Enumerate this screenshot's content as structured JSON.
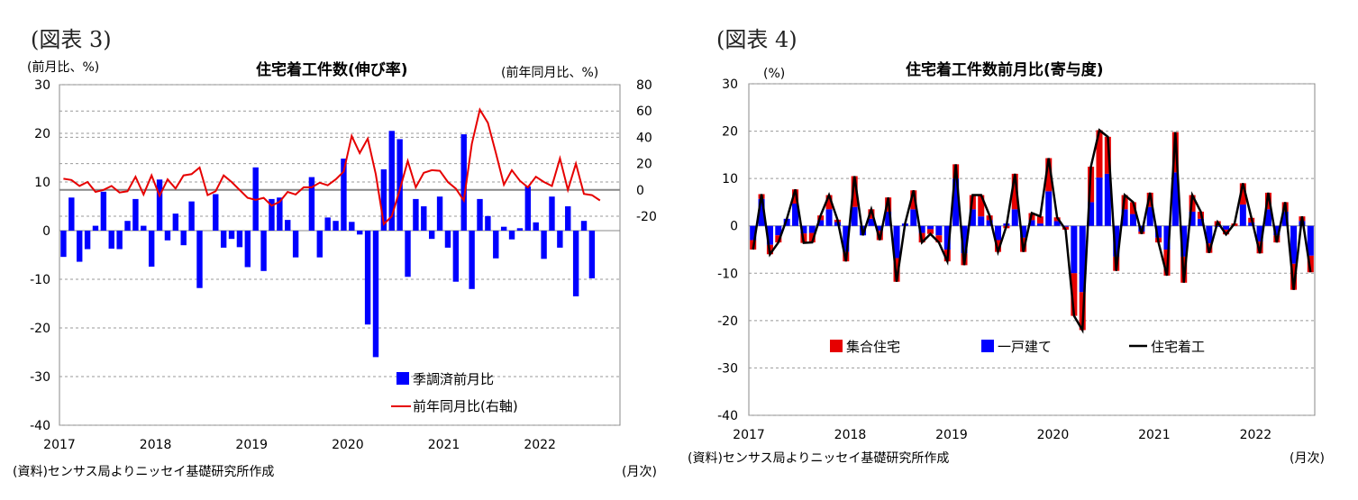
{
  "chart_data": [
    {
      "figure_label": "(図表 3)",
      "type": "bar",
      "title": "住宅着工件数(伸び率)",
      "ylabel_left": "(前月比、%)",
      "ylabel_right": "(前年同月比、%)",
      "xlabel": "(月次)",
      "source": "(資料)センサス局よりニッセイ基礎研究所作成",
      "x_ticks": [
        "2017",
        "2018",
        "2019",
        "2020",
        "2021",
        "2022"
      ],
      "y_left_ticks": [
        "30",
        "20",
        "10",
        "0",
        "-10",
        "-20",
        "-30",
        "-40"
      ],
      "y_right_ticks": [
        "80",
        "60",
        "40",
        "20",
        "0",
        "-20"
      ],
      "ylim_left": [
        -40,
        30
      ],
      "ylim_right": [
        -20,
        80
      ],
      "colors": {
        "bar": "#0000ff",
        "line": "#e60000"
      },
      "grid": true,
      "legend": {
        "bar": "季調済前月比",
        "line": "前年同月比(右軸)"
      },
      "series": [
        {
          "kind": "bar",
          "axis": "left",
          "values": [
            -5.4,
            6.8,
            -6.4,
            -3.8,
            1,
            8,
            -3.7,
            -3.8,
            2,
            6.5,
            1,
            -7.4,
            10.5,
            -2,
            3.5,
            -3,
            6,
            -11.8,
            0,
            7.5,
            -3.5,
            -1.7,
            -3.4,
            -7.5,
            13,
            -8.3,
            6.5,
            6.8,
            2.2,
            -5.5,
            0,
            11,
            -5.5,
            2.7,
            2,
            14.8,
            1.8,
            -0.8,
            -19.3,
            -26,
            12.6,
            20.5,
            18.8,
            -9.5,
            6.5,
            5,
            -1.7,
            7,
            -3.5,
            -10.5,
            19.8,
            -12,
            6.5,
            3,
            -5.7,
            0.8,
            -1.8,
            0.5,
            9.1,
            1.7,
            -5.8,
            7,
            -3.5,
            5,
            -13.5,
            2,
            -9.8
          ]
        },
        {
          "kind": "line",
          "axis": "right",
          "values": [
            8.5,
            7.5,
            3,
            6,
            -1.5,
            0,
            3,
            -2,
            -1,
            10,
            -3.5,
            11,
            -4.5,
            8,
            1,
            11,
            12,
            17,
            -4,
            -1,
            11,
            6,
            0,
            -6,
            -7.5,
            -6,
            -12,
            -9,
            -1.5,
            -3.5,
            2,
            2,
            5.5,
            3.5,
            8,
            14,
            41,
            28,
            39,
            12,
            -26,
            -20,
            0,
            22,
            2,
            13,
            15,
            14.5,
            6,
            1,
            -8,
            35,
            61,
            51,
            28,
            4,
            15,
            7,
            2,
            10,
            6,
            3,
            24,
            0,
            20,
            -3,
            -4,
            -8
          ]
        }
      ]
    },
    {
      "figure_label": "(図表 4)",
      "type": "bar",
      "title": "住宅着工件数前月比(寄与度)",
      "ylabel": "(%)",
      "xlabel": "(月次)",
      "source": "(資料)センサス局よりニッセイ基礎研究所作成",
      "x_ticks": [
        "2017",
        "2018",
        "2019",
        "2020",
        "2021",
        "2022"
      ],
      "y_ticks": [
        "30",
        "20",
        "10",
        "0",
        "-10",
        "-20",
        "-30",
        "-40"
      ],
      "ylim": [
        -40,
        30
      ],
      "colors": {
        "multi": "#e60000",
        "single": "#0000ff",
        "total": "#000000"
      },
      "grid": true,
      "legend": {
        "multi": "集合住宅",
        "single": "一戸建て",
        "total": "住宅着工"
      },
      "series": [
        {
          "name": "集合住宅",
          "values": [
            -2,
            1,
            -2,
            -1.5,
            0,
            3,
            -2,
            -2,
            1,
            3,
            0.5,
            -2,
            6.5,
            0,
            2,
            -2,
            3,
            -5,
            0,
            4,
            -2,
            -1,
            -1.5,
            -2.5,
            3,
            -2.5,
            3,
            4.5,
            1,
            -2.5,
            -0.5,
            7.5,
            -3,
            1.5,
            1.5,
            7,
            0.8,
            -0.6,
            -9,
            -8,
            7.5,
            10,
            7.8,
            -3,
            3,
            2.5,
            -0.5,
            3,
            -1,
            -5.5,
            8.5,
            -5.5,
            3.5,
            1.5,
            -2,
            1,
            -1,
            0.5,
            4.5,
            1,
            -2.5,
            3.5,
            -1.5,
            2,
            -5.5,
            1,
            -3.5
          ]
        },
        {
          "name": "一戸建て",
          "values": [
            -3,
            5.7,
            -4,
            -2,
            1.5,
            4.7,
            -1.6,
            -1.5,
            1.2,
            3.5,
            0.8,
            -5.5,
            4,
            -2,
            1.5,
            -1,
            3,
            -6.8,
            0.5,
            3.5,
            -1.5,
            -0.7,
            -2,
            -5,
            10,
            -5.8,
            3.5,
            2,
            1.2,
            -3,
            0.5,
            3.5,
            -2.5,
            1.2,
            0.5,
            7.3,
            1,
            -0.2,
            -10,
            -14,
            5,
            10.2,
            11,
            -6.5,
            3.5,
            2.5,
            -1.2,
            4,
            -2.5,
            -5,
            11.3,
            -6.5,
            3,
            1.5,
            -3.7,
            -0.2,
            -0.8,
            0,
            4.5,
            0.7,
            -3.3,
            3.5,
            -2,
            3,
            -8,
            1,
            -6.3
          ]
        },
        {
          "name": "住宅着工",
          "values": [
            -5,
            6.7,
            -6,
            -3.5,
            1.5,
            7.7,
            -3.6,
            -3.5,
            2.2,
            6.5,
            1.3,
            -7.5,
            10.5,
            -2,
            3.5,
            -3,
            6,
            -11.8,
            0.5,
            7.5,
            -3.5,
            -1.7,
            -3.5,
            -7.5,
            13,
            -8.3,
            6.5,
            6.5,
            2.2,
            -5.5,
            0,
            11,
            -5.5,
            2.7,
            2,
            14.3,
            1.8,
            -0.8,
            -19,
            -22,
            12.5,
            20.2,
            18.8,
            -9.5,
            6.5,
            5,
            -1.7,
            7,
            -3.5,
            -10.5,
            19.8,
            -12,
            6.5,
            3,
            -5.7,
            0.8,
            -1.8,
            0.5,
            9,
            1.7,
            -5.8,
            7,
            -3.5,
            5,
            -13.5,
            2,
            -9.8
          ]
        }
      ]
    }
  ]
}
